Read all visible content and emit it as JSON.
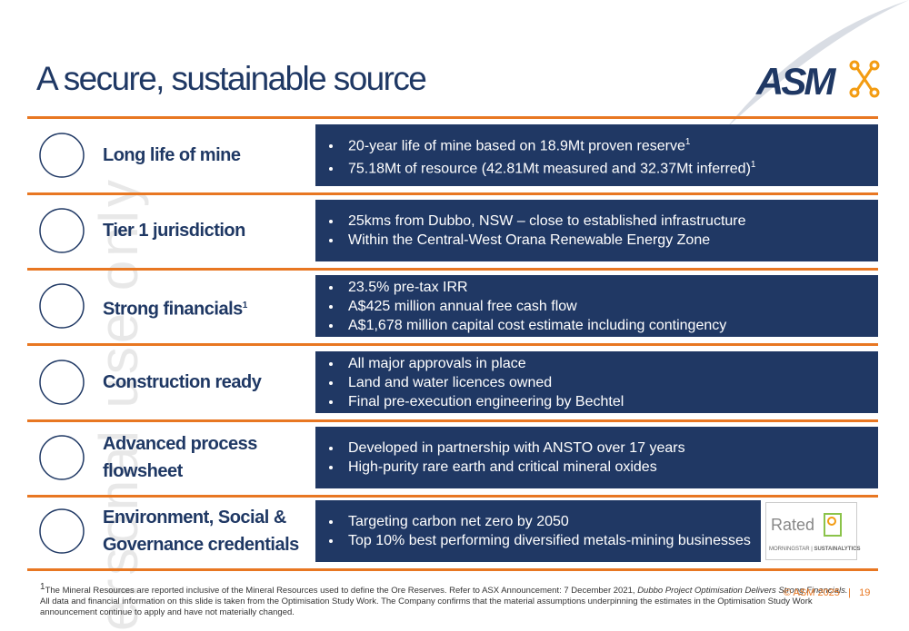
{
  "header": {
    "title": "A secure, sustainable source",
    "logo": "ASM"
  },
  "watermark": "ersonal use only",
  "rows": [
    {
      "label": [
        {
          "text": "Long life of mine"
        }
      ],
      "bullets": [
        {
          "text": "20-year life of mine based on 18.9Mt proven reserve",
          "sup": "1"
        },
        {
          "text": "75.18Mt of resource (42.81Mt measured and 32.37Mt inferred)",
          "sup": "1"
        }
      ]
    },
    {
      "label": [
        {
          "text": "Tier 1 jurisdiction"
        }
      ],
      "bullets": [
        {
          "text": "25kms from Dubbo, NSW – close to established infrastructure"
        },
        {
          "text": "Within the Central-West Orana Renewable Energy Zone"
        }
      ]
    },
    {
      "label": [
        {
          "text": "Strong financials",
          "sup": "1"
        }
      ],
      "bullets": [
        {
          "text": "23.5% pre-tax IRR"
        },
        {
          "text": "A$425 million annual free cash flow"
        },
        {
          "text": "A$1,678 million capital cost estimate including contingency"
        }
      ]
    },
    {
      "label": [
        {
          "text": "Construction ready"
        }
      ],
      "bullets": [
        {
          "text": "All major approvals in place"
        },
        {
          "text": "Land and water licences owned"
        },
        {
          "text": "Final pre-execution engineering by Bechtel"
        }
      ]
    },
    {
      "label": [
        {
          "text": "Advanced process"
        },
        {
          "text": "flowsheet"
        }
      ],
      "bullets": [
        {
          "text": "Developed in partnership with ANSTO over 17 years"
        },
        {
          "text": "High-purity rare earth and critical mineral oxides"
        }
      ]
    },
    {
      "label": [
        {
          "text": "Environment, Social &"
        },
        {
          "text": "Governance credentials"
        }
      ],
      "bullets": [
        {
          "text": "Targeting carbon net zero by 2050"
        },
        {
          "text": "Top 10% best performing diversified metals-mining businesses"
        }
      ]
    }
  ],
  "badge": {
    "rated": "Rated",
    "brand": "MORNINGSTAR",
    "name": "SUSTAINALYTICS"
  },
  "footnote": {
    "sup": "1",
    "lines": [
      [
        {
          "text": "The Mineral Resources are reported inclusive of the Mineral Resources used to define the Ore Reserves. Refer to ASX Announcement: 7 December 2021, "
        },
        {
          "text": "Dubbo Project Optimisation Delivers Strong Financials.",
          "italic": true
        }
      ],
      [
        {
          "text": "All data and financial information on this slide is taken from the Optimisation Study Work. The Company confirms that the material assumptions underpinning the estimates in the Optimisation Study Work"
        }
      ],
      [
        {
          "text": "announcement continue to apply and have not materially changed."
        }
      ]
    ]
  },
  "footer": {
    "copyright": "© ASM 2025",
    "separator": "|",
    "page": "19"
  }
}
